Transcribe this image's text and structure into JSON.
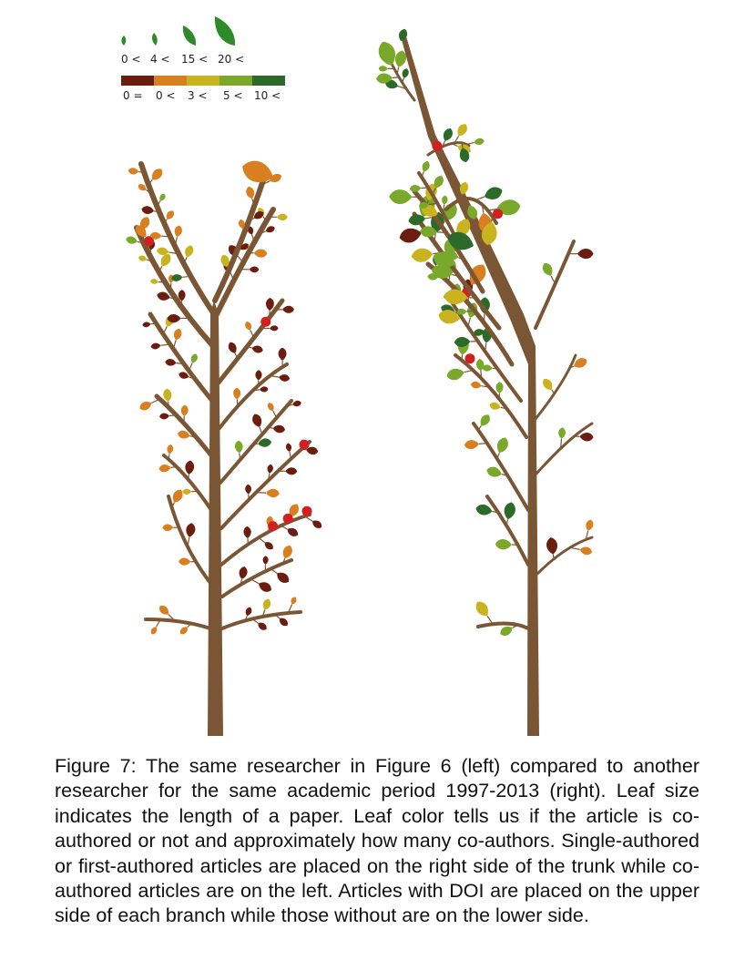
{
  "legend": {
    "size_labels": [
      "0 <",
      "4 <",
      "15 <",
      "20 <"
    ],
    "color_labels": [
      "0 =",
      "0 <",
      "3 <",
      "5 <",
      "10 <"
    ],
    "colors": [
      "#6b1e0f",
      "#d97f1f",
      "#c9b420",
      "#79a82a",
      "#2c6a2a"
    ]
  },
  "palette": {
    "trunk": "#7a5634",
    "red": "#d0201f"
  },
  "caption": "Figure 7: The same researcher in Figure 6 (left) compared to another researcher for the same academic period 1997-2013 (right). Leaf size indicates the length of a paper. Leaf color tells us if the article is co-authored or not and approximately how many co-authors. Single-authored or first-authored articles are placed on the right side of the trunk while co-authored articles are on the left. Articles with DOI are placed on the upper side of each branch while those without are on the lower side."
}
